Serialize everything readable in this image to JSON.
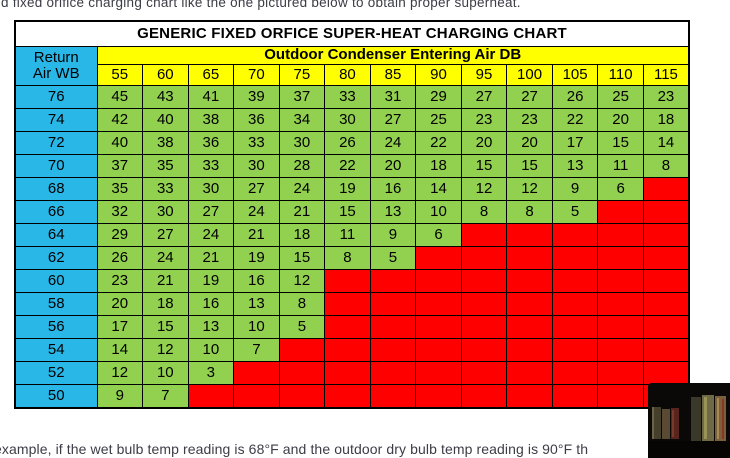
{
  "page": {
    "top_text": "d fixed orifice charging chart like the one pictured below to obtain proper superheat.",
    "bottom_text": "example, if the wet bulb temp reading is 68°F and the outdoor dry bulb temp reading is 90°F th"
  },
  "chart_data": {
    "type": "table",
    "title": "GENERIC FIXED ORFICE SUPER-HEAT CHARGING CHART",
    "column_group_label": "Outdoor Condenser Entering Air DB",
    "row_group_label_line1": "Return",
    "row_group_label_line2": "Air WB",
    "columns": [
      55,
      60,
      65,
      70,
      75,
      80,
      85,
      90,
      95,
      100,
      105,
      110,
      115
    ],
    "rows": [
      {
        "return_air_wb": 76,
        "superheat": [
          45,
          43,
          41,
          39,
          37,
          33,
          31,
          29,
          27,
          27,
          26,
          25,
          23
        ]
      },
      {
        "return_air_wb": 74,
        "superheat": [
          42,
          40,
          38,
          36,
          34,
          30,
          27,
          25,
          23,
          23,
          22,
          20,
          18
        ]
      },
      {
        "return_air_wb": 72,
        "superheat": [
          40,
          38,
          36,
          33,
          30,
          26,
          24,
          22,
          20,
          20,
          17,
          15,
          14
        ]
      },
      {
        "return_air_wb": 70,
        "superheat": [
          37,
          35,
          33,
          30,
          28,
          22,
          20,
          18,
          15,
          15,
          13,
          11,
          8
        ]
      },
      {
        "return_air_wb": 68,
        "superheat": [
          35,
          33,
          30,
          27,
          24,
          19,
          16,
          14,
          12,
          12,
          9,
          6,
          null
        ]
      },
      {
        "return_air_wb": 66,
        "superheat": [
          32,
          30,
          27,
          24,
          21,
          15,
          13,
          10,
          8,
          8,
          5,
          null,
          null
        ]
      },
      {
        "return_air_wb": 64,
        "superheat": [
          29,
          27,
          24,
          21,
          18,
          11,
          9,
          6,
          null,
          null,
          null,
          null,
          null
        ]
      },
      {
        "return_air_wb": 62,
        "superheat": [
          26,
          24,
          21,
          19,
          15,
          8,
          5,
          null,
          null,
          null,
          null,
          null,
          null
        ]
      },
      {
        "return_air_wb": 60,
        "superheat": [
          23,
          21,
          19,
          16,
          12,
          null,
          null,
          null,
          null,
          null,
          null,
          null,
          null
        ]
      },
      {
        "return_air_wb": 58,
        "superheat": [
          20,
          18,
          16,
          13,
          8,
          null,
          null,
          null,
          null,
          null,
          null,
          null,
          null
        ]
      },
      {
        "return_air_wb": 56,
        "superheat": [
          17,
          15,
          13,
          10,
          5,
          null,
          null,
          null,
          null,
          null,
          null,
          null,
          null
        ]
      },
      {
        "return_air_wb": 54,
        "superheat": [
          14,
          12,
          10,
          7,
          null,
          null,
          null,
          null,
          null,
          null,
          null,
          null,
          null
        ]
      },
      {
        "return_air_wb": 52,
        "superheat": [
          12,
          10,
          3,
          null,
          null,
          null,
          null,
          null,
          null,
          null,
          null,
          null,
          null
        ]
      },
      {
        "return_air_wb": 50,
        "superheat": [
          9,
          7,
          null,
          null,
          null,
          null,
          null,
          null,
          null,
          null,
          null,
          null,
          null
        ]
      }
    ],
    "colors": {
      "header_yellow": "#ffff00",
      "row_header_cyan": "#29b7e8",
      "value_green": "#92d050",
      "empty_red": "#ff0000",
      "grid_black": "#000000"
    }
  }
}
